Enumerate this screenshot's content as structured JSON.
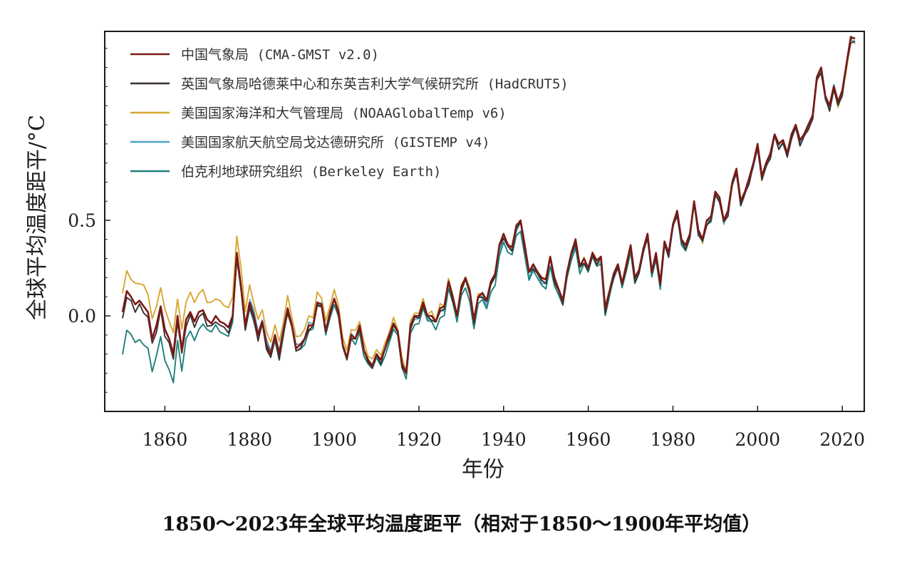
{
  "chart_data": {
    "type": "line",
    "title": "1850～2023年全球平均温度距平（相对于1850～1900年平均值）",
    "xlabel": "年份",
    "ylabel": "全球平均温度距平/°C",
    "xlim": [
      1850,
      2023
    ],
    "ylim": [
      -0.45,
      1.5
    ],
    "x_ticks": [
      {
        "value": 1860,
        "label": "1860"
      },
      {
        "value": 1880,
        "label": "1880"
      },
      {
        "value": 1900,
        "label": "1900"
      },
      {
        "value": 1920,
        "label": "1920"
      },
      {
        "value": 1940,
        "label": "1940"
      },
      {
        "value": 1960,
        "label": "1960"
      },
      {
        "value": 1980,
        "label": "1980"
      },
      {
        "value": 2000,
        "label": "2000"
      },
      {
        "value": 2020,
        "label": "2020"
      }
    ],
    "y_ticks": [
      {
        "value": 0.0,
        "label": "0.0"
      },
      {
        "value": 0.5,
        "label": "0.5"
      }
    ],
    "grid": false,
    "legend_position": "top-left",
    "x_start": 1850,
    "base_series": [
      0.02,
      0.13,
      0.1,
      0.06,
      0.08,
      0.05,
      0.02,
      -0.12,
      -0.05,
      0.05,
      -0.07,
      -0.12,
      -0.2,
      0.0,
      -0.18,
      -0.02,
      0.02,
      -0.03,
      0.02,
      0.03,
      -0.02,
      -0.04,
      0.0,
      -0.03,
      -0.04,
      -0.06,
      0.0,
      0.33,
      0.15,
      -0.05,
      0.07,
      0.0,
      -0.1,
      -0.03,
      -0.15,
      -0.2,
      -0.1,
      -0.2,
      -0.08,
      0.04,
      -0.05,
      -0.17,
      -0.15,
      -0.12,
      -0.05,
      -0.05,
      0.07,
      0.06,
      -0.08,
      0.02,
      0.09,
      0.02,
      -0.15,
      -0.22,
      -0.1,
      -0.12,
      -0.05,
      -0.18,
      -0.23,
      -0.26,
      -0.2,
      -0.23,
      -0.17,
      -0.1,
      -0.04,
      -0.08,
      -0.25,
      -0.3,
      -0.05,
      0.0,
      0.0,
      0.07,
      0.0,
      0.0,
      -0.03,
      0.04,
      0.05,
      0.18,
      0.1,
      0.0,
      0.15,
      0.2,
      0.13,
      -0.02,
      0.1,
      0.12,
      0.08,
      0.18,
      0.22,
      0.37,
      0.43,
      0.37,
      0.36,
      0.47,
      0.5,
      0.37,
      0.23,
      0.27,
      0.23,
      0.2,
      0.19,
      0.31,
      0.2,
      0.14,
      0.08,
      0.23,
      0.33,
      0.4,
      0.26,
      0.3,
      0.25,
      0.33,
      0.29,
      0.31,
      0.04,
      0.13,
      0.22,
      0.27,
      0.17,
      0.27,
      0.37,
      0.2,
      0.24,
      0.35,
      0.43,
      0.23,
      0.33,
      0.17,
      0.39,
      0.33,
      0.48,
      0.55,
      0.4,
      0.37,
      0.43,
      0.6,
      0.45,
      0.4,
      0.5,
      0.52,
      0.65,
      0.62,
      0.5,
      0.55,
      0.7,
      0.77,
      0.6,
      0.65,
      0.72,
      0.8,
      0.9,
      0.73,
      0.8,
      0.85,
      0.95,
      0.9,
      0.92,
      0.85,
      0.95,
      1.0,
      0.92,
      0.95,
      1.0,
      1.05,
      1.25,
      1.3,
      1.15,
      1.1,
      1.2,
      1.12,
      1.18,
      1.32,
      1.46,
      1.45
    ],
    "series": [
      {
        "name": "中国气象局 (CMA-GMST v2.0)",
        "color": "#7a1a16",
        "offsets": [
          [
            1850,
            0.0
          ],
          [
            2023,
            0.0
          ]
        ]
      },
      {
        "name": "英国气象局哈德莱中心和东英吉利大学气候研究所 (HadCRUT5)",
        "color": "#3a3030",
        "offsets": [
          [
            1850,
            -0.03
          ],
          [
            1880,
            -0.02
          ],
          [
            1900,
            -0.01
          ],
          [
            2023,
            -0.02
          ]
        ]
      },
      {
        "name": "美国国家海洋和大气管理局 (NOAAGlobalTemp v6)",
        "color": "#d8a632",
        "offsets": [
          [
            1850,
            0.1
          ],
          [
            1875,
            0.1
          ],
          [
            1885,
            0.06
          ],
          [
            1900,
            0.04
          ],
          [
            1915,
            0.02
          ],
          [
            1940,
            0.0
          ],
          [
            2023,
            -0.02
          ]
        ]
      },
      {
        "name": "美国国家航天航空局戈达德研究所 (GISTEMP v4)",
        "color": "#4fa3c9",
        "offsets": [
          [
            1880,
            0.02
          ],
          [
            1900,
            0.0
          ],
          [
            1940,
            -0.02
          ],
          [
            2023,
            -0.01
          ]
        ],
        "start": 1880
      },
      {
        "name": "伯克利地球研究组织 (Berkeley Earth)",
        "color": "#1f7f7a",
        "offsets": [
          [
            1850,
            -0.22
          ],
          [
            1860,
            -0.16
          ],
          [
            1870,
            -0.06
          ],
          [
            1880,
            -0.02
          ],
          [
            1900,
            -0.02
          ],
          [
            1940,
            -0.05
          ],
          [
            1960,
            -0.03
          ],
          [
            2023,
            0.0
          ]
        ]
      }
    ]
  }
}
